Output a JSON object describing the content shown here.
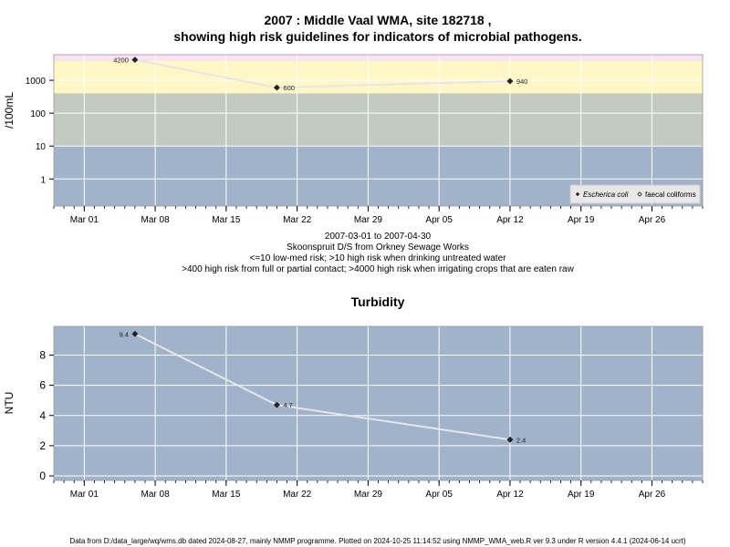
{
  "title_line1": "2007 : Middle Vaal WMA, site 182718 ,",
  "title_line2": "showing high risk guidelines for indicators of microbial pathogens.",
  "notes": [
    "2007-03-01 to 2007-04-30",
    "Skoonspruit D/S from Orkney Sewage Works",
    "<=10 low-med risk; >10 high risk when drinking untreated water",
    ">400 high risk from full or partial contact; >4000 high risk when irrigating crops that are eaten raw"
  ],
  "footer": "Data from D:/data_large/wq/wms.db dated 2024-08-27, mainly NMMP programme. Plotted on 2024-10-25 11:14:52 using NMMP_WMA_web.R ver 9.3 under R version 4.4.1 (2024-06-14 ucrt)",
  "colors": {
    "panel": "#a1b3cb",
    "zone_low_med": "#a1b3cb",
    "zone_drinking": "#c3cbc0",
    "zone_contact": "#fff7c6",
    "zone_irrigation": "#fbe1f6",
    "line": "#e6e6e6",
    "grid": "#ffffff"
  },
  "chart_data": [
    {
      "type": "line",
      "title": "",
      "xlabel": "",
      "ylabel": "/100mL",
      "yscale": "log",
      "x_range": [
        "2007-02-26",
        "2007-05-01"
      ],
      "ylim": [
        0.15,
        6000
      ],
      "x_ticks": [
        "Mar 01",
        "Mar 08",
        "Mar 15",
        "Mar 22",
        "Mar 29",
        "Apr 05",
        "Apr 12",
        "Apr 19",
        "Apr 26"
      ],
      "x_tick_dates": [
        "2007-03-01",
        "2007-03-08",
        "2007-03-15",
        "2007-03-22",
        "2007-03-29",
        "2007-04-05",
        "2007-04-12",
        "2007-04-19",
        "2007-04-26"
      ],
      "y_ticks": [
        1,
        10,
        100,
        1000
      ],
      "y_tick_labels": [
        "1",
        "10",
        "100",
        "1000"
      ],
      "risk_bands": [
        {
          "from": 0.15,
          "to": 10,
          "color_key": "zone_low_med"
        },
        {
          "from": 10,
          "to": 400,
          "color_key": "zone_drinking"
        },
        {
          "from": 400,
          "to": 4000,
          "color_key": "zone_contact"
        },
        {
          "from": 4000,
          "to": 6000,
          "color_key": "zone_irrigation"
        }
      ],
      "grid": true,
      "legend_position": "bottom-right",
      "series": [
        {
          "name": "Escherica coli",
          "marker": "filled-diamond",
          "points": [
            {
              "x": "2007-03-06",
              "y": 4200,
              "label": "4200"
            },
            {
              "x": "2007-03-20",
              "y": 600,
              "label": "600"
            },
            {
              "x": "2007-04-12",
              "y": 940,
              "label": "940"
            }
          ]
        },
        {
          "name": "faecal coliforms",
          "marker": "open-diamond",
          "points": []
        }
      ]
    },
    {
      "type": "line",
      "title": "Turbidity",
      "xlabel": "",
      "ylabel": "NTU",
      "yscale": "linear",
      "x_range": [
        "2007-02-26",
        "2007-05-01"
      ],
      "ylim": [
        -0.3,
        9.9
      ],
      "x_ticks": [
        "Mar 01",
        "Mar 08",
        "Mar 15",
        "Mar 22",
        "Mar 29",
        "Apr 05",
        "Apr 12",
        "Apr 19",
        "Apr 26"
      ],
      "x_tick_dates": [
        "2007-03-01",
        "2007-03-08",
        "2007-03-15",
        "2007-03-22",
        "2007-03-29",
        "2007-04-05",
        "2007-04-12",
        "2007-04-19",
        "2007-04-26"
      ],
      "y_ticks": [
        0,
        2,
        4,
        6,
        8
      ],
      "y_tick_labels": [
        "0",
        "2",
        "4",
        "6",
        "8"
      ],
      "grid": true,
      "series": [
        {
          "name": "",
          "marker": "filled-diamond",
          "points": [
            {
              "x": "2007-03-06",
              "y": 9.4,
              "label": "9.4"
            },
            {
              "x": "2007-03-20",
              "y": 4.7,
              "label": "4.7"
            },
            {
              "x": "2007-04-12",
              "y": 2.4,
              "label": "2.4"
            }
          ]
        }
      ]
    }
  ]
}
